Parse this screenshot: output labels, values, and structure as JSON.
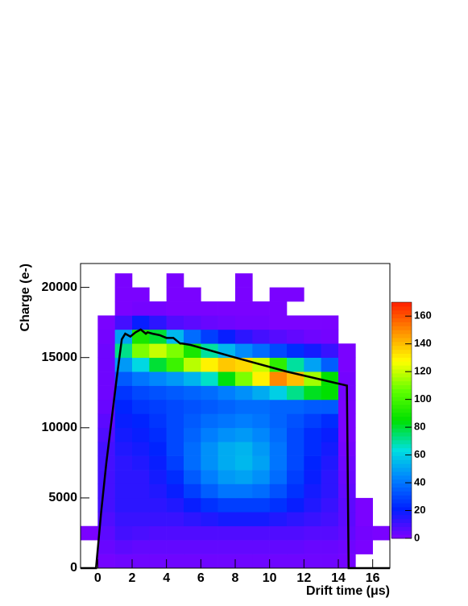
{
  "chart_data": {
    "type": "heatmap",
    "x_label": "Drift time (μs)",
    "y_label": "Charge (e-)",
    "xlim": [
      -1,
      17
    ],
    "ylim": [
      0,
      21700
    ],
    "xticks": [
      0,
      2,
      4,
      6,
      8,
      10,
      12,
      14,
      16
    ],
    "yticks": [
      0,
      5000,
      10000,
      15000,
      20000
    ],
    "zlim": [
      0,
      170
    ],
    "zticks": [
      0,
      20,
      40,
      60,
      80,
      100,
      120,
      140,
      160
    ],
    "colormap": [
      "#8000ff",
      "#0020ff",
      "#0080ff",
      "#00e0e0",
      "#00e000",
      "#60ff00",
      "#ffff00",
      "#ff9000",
      "#ff2000"
    ],
    "xbins": [
      -1,
      0,
      1,
      2,
      3,
      4,
      5,
      6,
      7,
      8,
      9,
      10,
      11,
      12,
      13,
      14,
      15,
      16,
      17
    ],
    "ybins": [
      0,
      1000,
      2000,
      3000,
      4000,
      5000,
      6000,
      7000,
      8000,
      9000,
      10000,
      11000,
      12000,
      13000,
      14000,
      15000,
      16000,
      17000,
      18000,
      19000,
      20000,
      21000
    ],
    "z": [
      [
        0,
        2,
        3,
        3,
        3,
        3,
        3,
        3,
        3,
        3,
        3,
        3,
        3,
        3,
        3,
        2,
        0,
        0
      ],
      [
        0,
        4,
        6,
        5,
        5,
        5,
        5,
        5,
        5,
        5,
        5,
        5,
        5,
        4,
        4,
        3,
        1,
        0
      ],
      [
        1,
        6,
        10,
        9,
        8,
        8,
        8,
        8,
        8,
        8,
        8,
        8,
        8,
        7,
        7,
        5,
        2,
        1
      ],
      [
        0,
        8,
        12,
        12,
        12,
        12,
        14,
        16,
        18,
        18,
        18,
        16,
        14,
        12,
        10,
        6,
        1,
        0
      ],
      [
        0,
        10,
        14,
        14,
        14,
        16,
        20,
        25,
        28,
        28,
        28,
        25,
        20,
        16,
        12,
        6,
        1,
        0
      ],
      [
        0,
        10,
        14,
        14,
        16,
        20,
        28,
        35,
        40,
        40,
        38,
        32,
        25,
        18,
        14,
        5,
        0,
        0
      ],
      [
        0,
        10,
        14,
        14,
        18,
        24,
        34,
        42,
        48,
        50,
        46,
        38,
        28,
        20,
        14,
        4,
        0,
        0
      ],
      [
        0,
        10,
        14,
        16,
        20,
        28,
        38,
        46,
        52,
        55,
        50,
        40,
        30,
        22,
        16,
        3,
        0,
        0
      ],
      [
        0,
        10,
        16,
        18,
        22,
        30,
        38,
        46,
        52,
        54,
        48,
        40,
        30,
        24,
        18,
        2,
        0,
        0
      ],
      [
        0,
        8,
        18,
        20,
        24,
        30,
        36,
        42,
        46,
        48,
        44,
        38,
        30,
        24,
        20,
        1,
        0,
        0
      ],
      [
        0,
        6,
        20,
        22,
        26,
        30,
        34,
        38,
        40,
        42,
        40,
        36,
        32,
        28,
        24,
        1,
        0,
        0
      ],
      [
        0,
        4,
        22,
        26,
        28,
        30,
        32,
        34,
        36,
        38,
        38,
        36,
        36,
        34,
        34,
        1,
        0,
        0
      ],
      [
        0,
        3,
        26,
        30,
        32,
        34,
        36,
        38,
        42,
        46,
        52,
        60,
        72,
        82,
        85,
        2,
        0,
        0
      ],
      [
        0,
        3,
        34,
        40,
        44,
        48,
        54,
        66,
        84,
        110,
        130,
        150,
        140,
        115,
        85,
        2,
        0,
        0
      ],
      [
        0,
        3,
        48,
        62,
        80,
        98,
        118,
        130,
        138,
        135,
        120,
        95,
        70,
        50,
        35,
        1,
        0,
        0
      ],
      [
        0,
        3,
        72,
        110,
        120,
        110,
        90,
        70,
        55,
        45,
        38,
        30,
        24,
        18,
        12,
        1,
        0,
        0
      ],
      [
        0,
        2,
        50,
        90,
        80,
        55,
        38,
        28,
        20,
        14,
        10,
        7,
        5,
        3,
        2,
        0,
        0,
        0
      ],
      [
        0,
        1,
        10,
        20,
        14,
        8,
        6,
        4,
        3,
        2,
        2,
        1,
        1,
        1,
        1,
        0,
        0,
        0
      ],
      [
        0,
        0,
        1,
        2,
        2,
        1,
        1,
        1,
        1,
        1,
        1,
        1,
        0,
        0,
        0,
        0,
        0,
        0
      ],
      [
        0,
        0,
        1,
        1,
        0,
        1,
        1,
        0,
        0,
        1,
        0,
        1,
        1,
        0,
        0,
        0,
        0,
        0
      ],
      [
        0,
        0,
        1,
        0,
        0,
        1,
        0,
        0,
        0,
        1,
        0,
        0,
        0,
        0,
        0,
        0,
        0,
        0
      ]
    ],
    "profile": {
      "color": "#000000",
      "x": [
        -1,
        -0.1,
        0.2,
        0.5,
        0.8,
        1.1,
        1.4,
        1.6,
        1.9,
        2.2,
        2.5,
        2.8,
        2.9,
        3.2,
        3.6,
        4.0,
        4.4,
        4.8,
        4.9,
        5.4,
        8,
        11,
        14.5,
        14.6,
        17
      ],
      "y": [
        0,
        0,
        4000,
        7500,
        10500,
        13500,
        16300,
        16700,
        16500,
        16800,
        17000,
        16700,
        16800,
        16700,
        16600,
        16400,
        16400,
        16000,
        16000,
        15900,
        15000,
        14000,
        13000,
        0,
        0
      ]
    }
  }
}
